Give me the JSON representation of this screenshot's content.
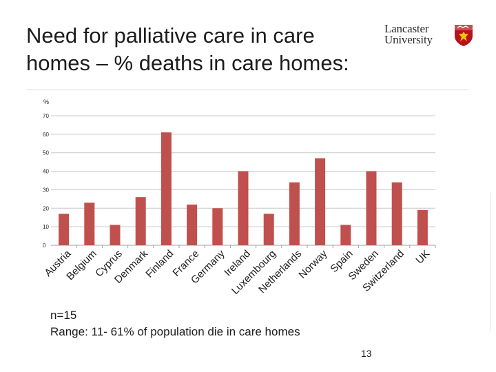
{
  "slide": {
    "title": "Need for palliative care in care homes – % deaths in care homes:",
    "logo_line1": "Lancaster",
    "logo_line2": "University",
    "note_n": "n=15",
    "note_range": "Range: 11- 61% of population die in care homes",
    "page_number": "13"
  },
  "colors": {
    "bar": "#c0504d",
    "gridline": "#c8c8c8",
    "logo_red": "#b5121b"
  },
  "chart_data": {
    "type": "bar",
    "title": "",
    "ylabel": "%",
    "xlabel": "",
    "ylim": [
      0,
      70
    ],
    "yticks": [
      0,
      10,
      20,
      30,
      40,
      50,
      60,
      70
    ],
    "grid": true,
    "categories": [
      "Austria",
      "Belgium",
      "Cyprus",
      "Denmark",
      "Finland",
      "France",
      "Germany",
      "Ireland",
      "Luxembourg",
      "Netherlands",
      "Norway",
      "Spain",
      "Sweden",
      "Switzerland",
      "UK"
    ],
    "values": [
      17,
      23,
      11,
      26,
      61,
      22,
      20,
      40,
      17,
      34,
      47,
      11,
      40,
      34,
      19
    ]
  }
}
